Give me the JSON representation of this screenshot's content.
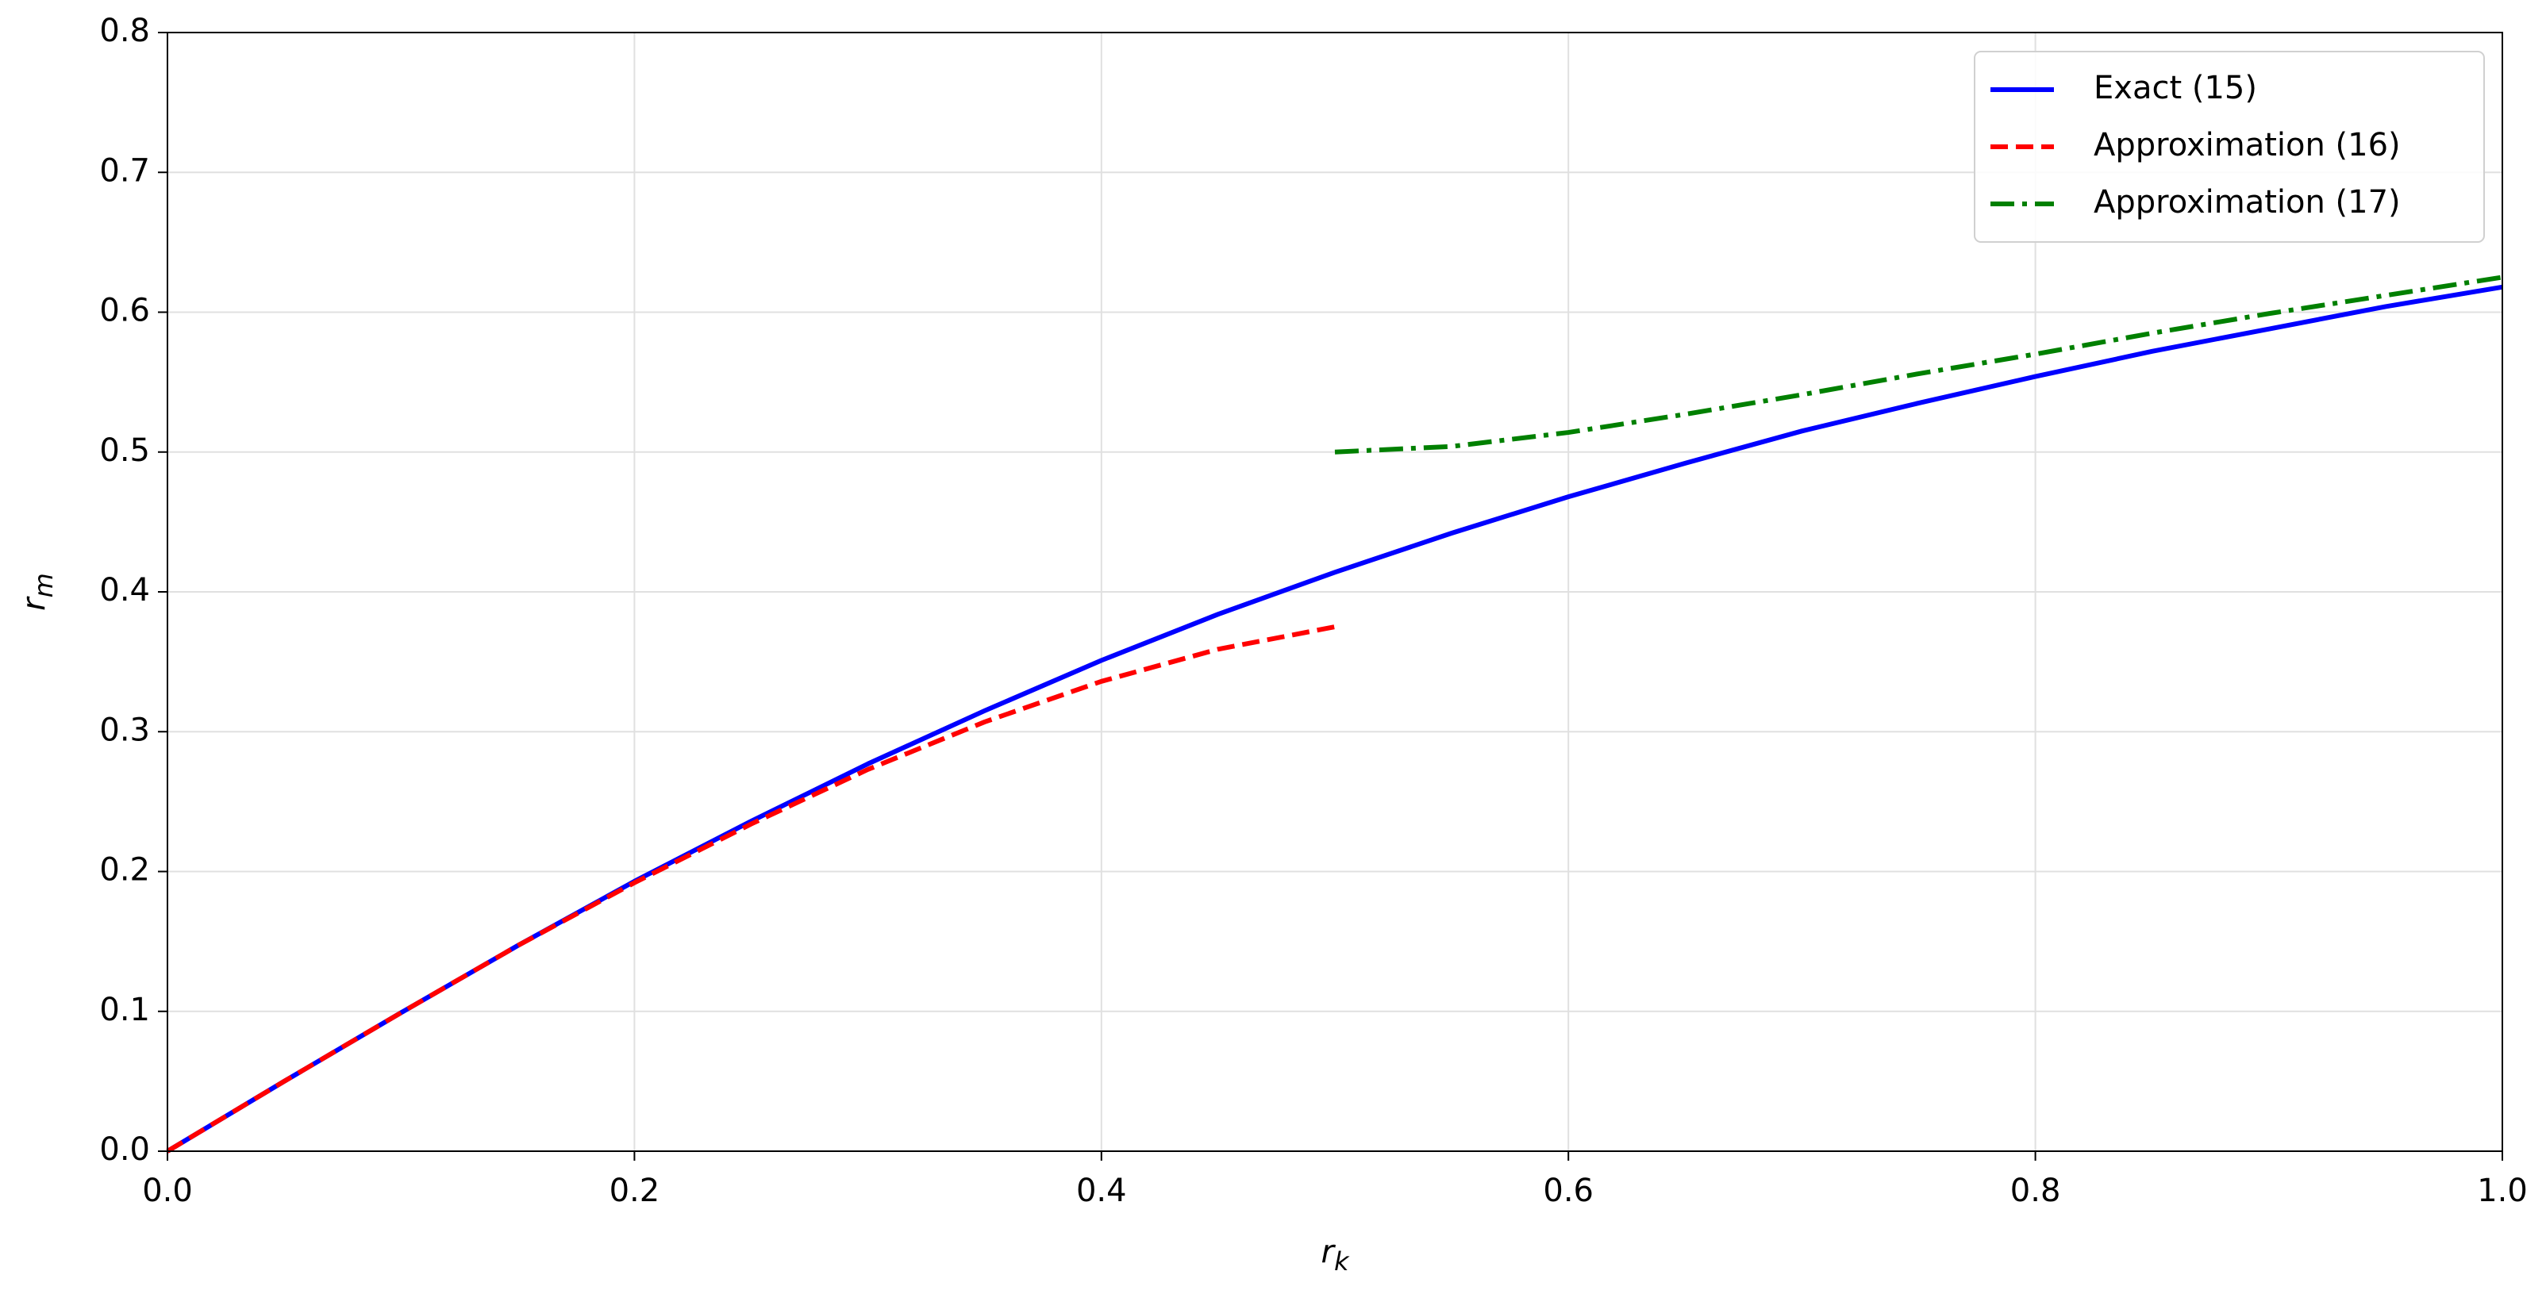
{
  "chart_data": {
    "type": "line",
    "x_label": "r",
    "x_label_sub": "k",
    "y_label": "r",
    "y_label_sub": "m",
    "x": [
      0,
      0.05,
      0.1,
      0.15,
      0.2,
      0.25,
      0.3,
      0.35,
      0.4,
      0.45,
      0.5,
      0.55,
      0.6,
      0.65,
      0.7,
      0.75,
      0.8,
      0.85,
      0.9,
      0.95,
      1
    ],
    "series": [
      {
        "name": "Exact (15)",
        "color": "#0000ff",
        "linestyle": "solid",
        "values": [
          0,
          0.05,
          0.099,
          0.147,
          0.193,
          0.236,
          0.277,
          0.315,
          0.351,
          0.384,
          0.414,
          0.442,
          0.468,
          0.492,
          0.515,
          0.535,
          0.554,
          0.572,
          0.588,
          0.604,
          0.618
        ]
      },
      {
        "name": "Approximation (16)",
        "color": "#ff0000",
        "linestyle": "dashed",
        "values": [
          0,
          0.05,
          0.099,
          0.147,
          0.192,
          0.234,
          0.273,
          0.307,
          0.336,
          0.359,
          0.375,
          null,
          null,
          null,
          null,
          null,
          null,
          null,
          null,
          null,
          null
        ]
      },
      {
        "name": "Approximation (17)",
        "color": "#008000",
        "linestyle": "dashdot",
        "values": [
          null,
          null,
          null,
          null,
          null,
          null,
          null,
          null,
          null,
          null,
          0.5,
          0.504,
          0.514,
          0.527,
          0.541,
          0.556,
          0.57,
          0.585,
          0.599,
          0.612,
          0.625
        ]
      }
    ],
    "xlim": [
      0,
      1
    ],
    "xticks": [
      {
        "value": 0,
        "label": "0.0"
      },
      0.2,
      0.4,
      0.6,
      0.8,
      {
        "value": 1,
        "label": "1.0"
      }
    ],
    "ylim": [
      0,
      0.8
    ],
    "yticks": [
      {
        "value": 0,
        "label": "0.0"
      },
      0.1,
      0.2,
      0.3,
      0.4,
      0.5,
      0.6,
      0.7,
      0.8
    ],
    "grid": true,
    "legend": "upper right"
  }
}
